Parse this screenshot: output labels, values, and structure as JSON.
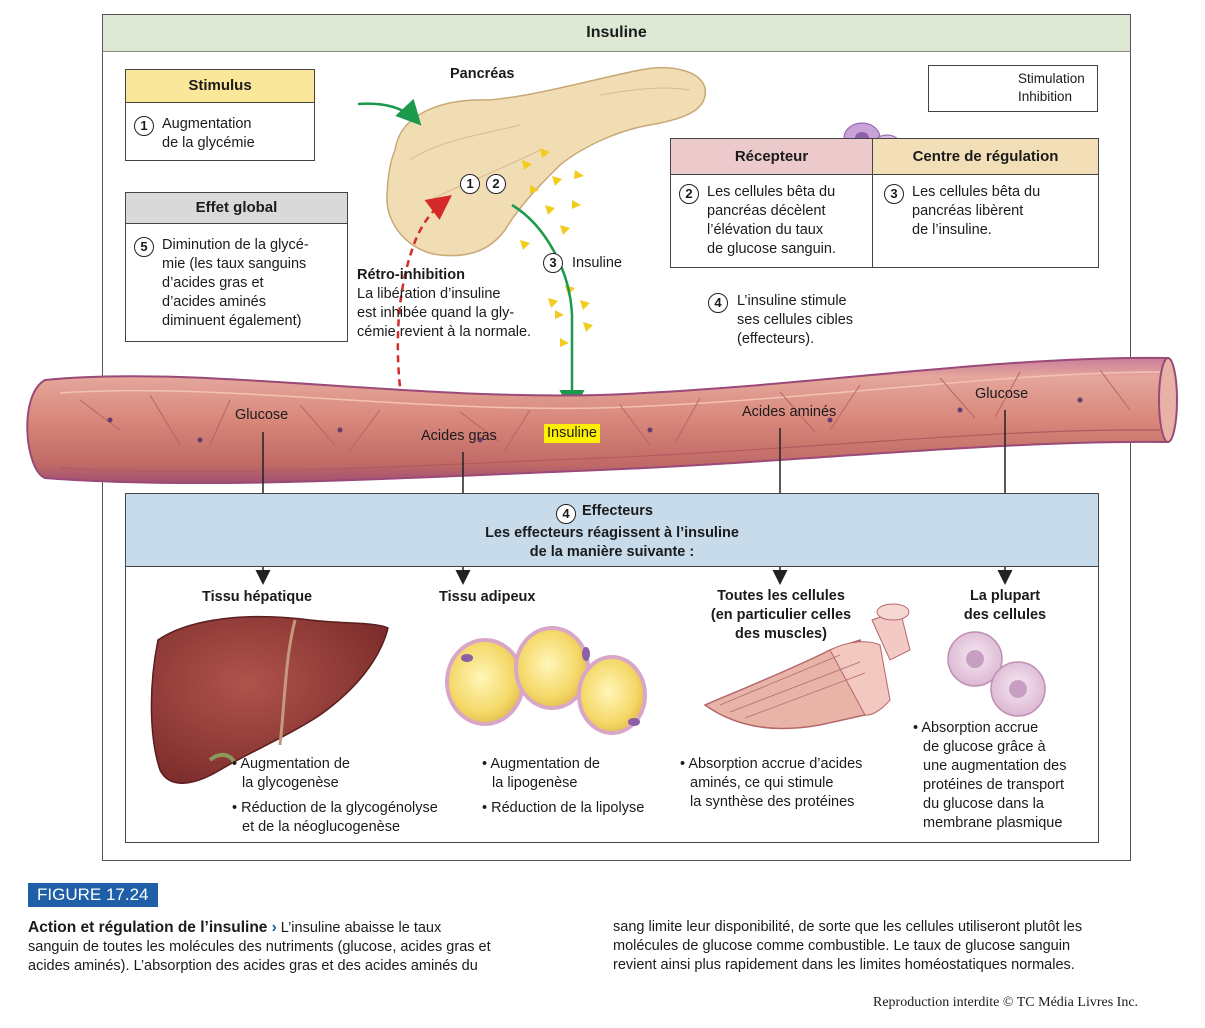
{
  "header": {
    "title": "Insuline"
  },
  "pancreas_label": "Pancréas",
  "legend": {
    "stimulation": "Stimulation",
    "inhibition": "Inhibition",
    "stimulation_color": "#1a9a4a",
    "inhibition_color": "#d42a2a"
  },
  "stimulus": {
    "title": "Stimulus",
    "num": "1",
    "text_l1": "Augmentation",
    "text_l2": "de la glycémie",
    "header_color": "#fbe79a"
  },
  "effet_global": {
    "title": "Effet global",
    "num": "5",
    "l1": "Diminution de la glycé-",
    "l2": "mie (les taux sanguins",
    "l3": "d’acides gras et",
    "l4": "d’acides aminés",
    "l5": "diminuent également)"
  },
  "recepteur": {
    "title": "Récepteur",
    "num": "2",
    "l1": "Les cellules bêta du",
    "l2": "pancréas décèlent",
    "l3": "l’élévation du taux",
    "l4": "de glucose sanguin."
  },
  "centre": {
    "title": "Centre de régulation",
    "num": "3",
    "l1": "Les cellules bêta du",
    "l2": "pancréas libèrent",
    "l3": "de l’insuline."
  },
  "pancreas_nums": {
    "n1": "1",
    "n2": "2"
  },
  "retro": {
    "title": "Rétro-inhibition",
    "l1": "La libération d’insuline",
    "l2": "est inhibée quand la gly-",
    "l3": "cémie revient à la normale."
  },
  "insuline_step": {
    "num": "3",
    "label": "Insuline"
  },
  "step4": {
    "num": "4",
    "l1": "L’insuline stimule",
    "l2": "ses cellules cibles",
    "l3": "(effecteurs)."
  },
  "vessel": {
    "glucose_left": "Glucose",
    "acides_gras": "Acides gras",
    "insuline": "Insuline",
    "acides_amines": "Acides aminés",
    "glucose_right": "Glucose"
  },
  "effecteurs": {
    "num": "4",
    "title": "Effecteurs",
    "l1": "Les effecteurs réagissent à l’insuline",
    "l2": "de la manière suivante :"
  },
  "targets": {
    "hepatique": {
      "title": "Tissu hépatique",
      "b1_l1": "Augmentation de",
      "b1_l2": "la glycogenèse",
      "b2_l1": "Réduction de la glycogénolyse",
      "b2_l2": "et de la néoglucogenèse"
    },
    "adipeux": {
      "title": "Tissu adipeux",
      "b1_l1": "Augmentation de",
      "b1_l2": "la lipogenèse",
      "b2_l1": "Réduction de la lipolyse"
    },
    "cellules": {
      "title_l1": "Toutes les cellules",
      "title_l2": "(en particulier celles",
      "title_l3": "des muscles)",
      "b1_l1": "Absorption accrue d’acides",
      "b1_l2": "aminés, ce qui stimule",
      "b1_l3": "la synthèse des protéines"
    },
    "plupart": {
      "title_l1": "La plupart",
      "title_l2": "des cellules",
      "b1_l1": "Absorption accrue",
      "b1_l2": "de glucose grâce à",
      "b1_l3": "une augmentation des",
      "b1_l4": "protéines de transport",
      "b1_l5": "du glucose dans la",
      "b1_l6": "membrane plasmique"
    }
  },
  "figure": {
    "label": "FIGURE 17.24",
    "caption_title": "Action et régulation de l’insuline",
    "caption_arrow": "›",
    "left_l1": " L’insuline abaisse le taux",
    "left_l2": "sanguin de toutes les molécules des nutriments (glucose, acides gras et",
    "left_l3": "acides aminés). L’absorption des acides gras et des acides aminés du",
    "right_l1": "sang limite leur disponibilité, de sorte que les cellules utiliseront plutôt les",
    "right_l2": "molécules de glucose comme combustible. Le taux de glucose sanguin",
    "right_l3": "revient ainsi plus rapidement dans les limites homéostatiques normales.",
    "copyright": "Reproduction interdite © TC Média Livres Inc."
  }
}
